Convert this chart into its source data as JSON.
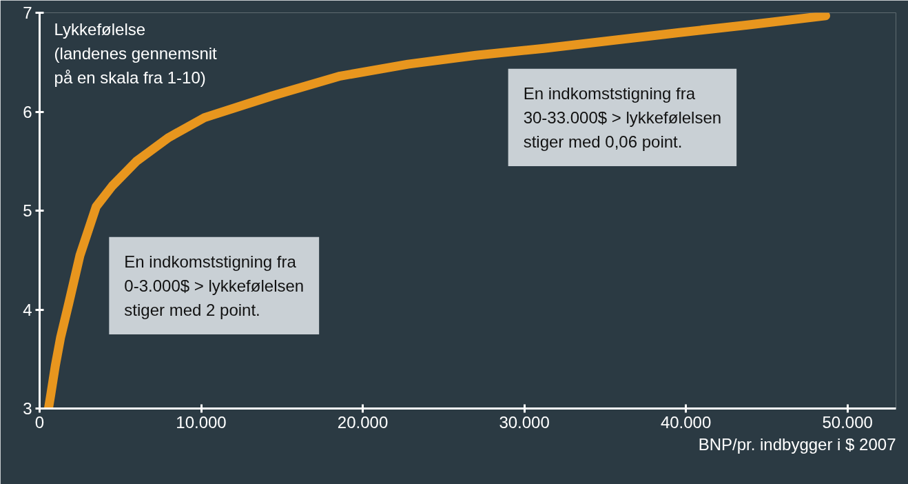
{
  "chart_data": {
    "type": "line",
    "ylabel": "Lykkefølelse\n(landenes gennemsnit\npå en skala fra 1-10)",
    "xlabel": "BNP/pr. indbygger i $ 2007",
    "x": [
      550,
      700,
      970,
      1300,
      1800,
      2500,
      3500,
      4500,
      6000,
      8000,
      10200,
      14400,
      18600,
      22800,
      27000,
      31200,
      35400,
      39600,
      44000,
      48650
    ],
    "series": [
      {
        "color": "#e8961e",
        "values": [
          3.0,
          3.15,
          3.43,
          3.72,
          4.06,
          4.55,
          5.04,
          5.25,
          5.5,
          5.74,
          5.94,
          6.16,
          6.36,
          6.48,
          6.57,
          6.64,
          6.72,
          6.8,
          6.88,
          6.97
        ]
      }
    ],
    "xlim": [
      0,
      53000
    ],
    "ylim": [
      3,
      7
    ],
    "xticks": [
      0,
      {
        "value": 10000,
        "label": "10.000"
      },
      {
        "value": 20000,
        "label": "20.000"
      },
      {
        "value": 30000,
        "label": "30.000"
      },
      {
        "value": 40000,
        "label": "40.000"
      },
      {
        "value": 50000,
        "label": "50.000"
      }
    ],
    "yticks": [
      3,
      4,
      5,
      6,
      7
    ],
    "grid": false,
    "marker": "none",
    "line_style": "solid",
    "annotations": [
      "En indkomststigning fra\n0-3.000$ > lykkefølelsen\nstiger med 2 point.",
      "En indkomststigning fra\n30-33.000$ > lykkefølelsen\nstiger med 0,06 point."
    ]
  }
}
